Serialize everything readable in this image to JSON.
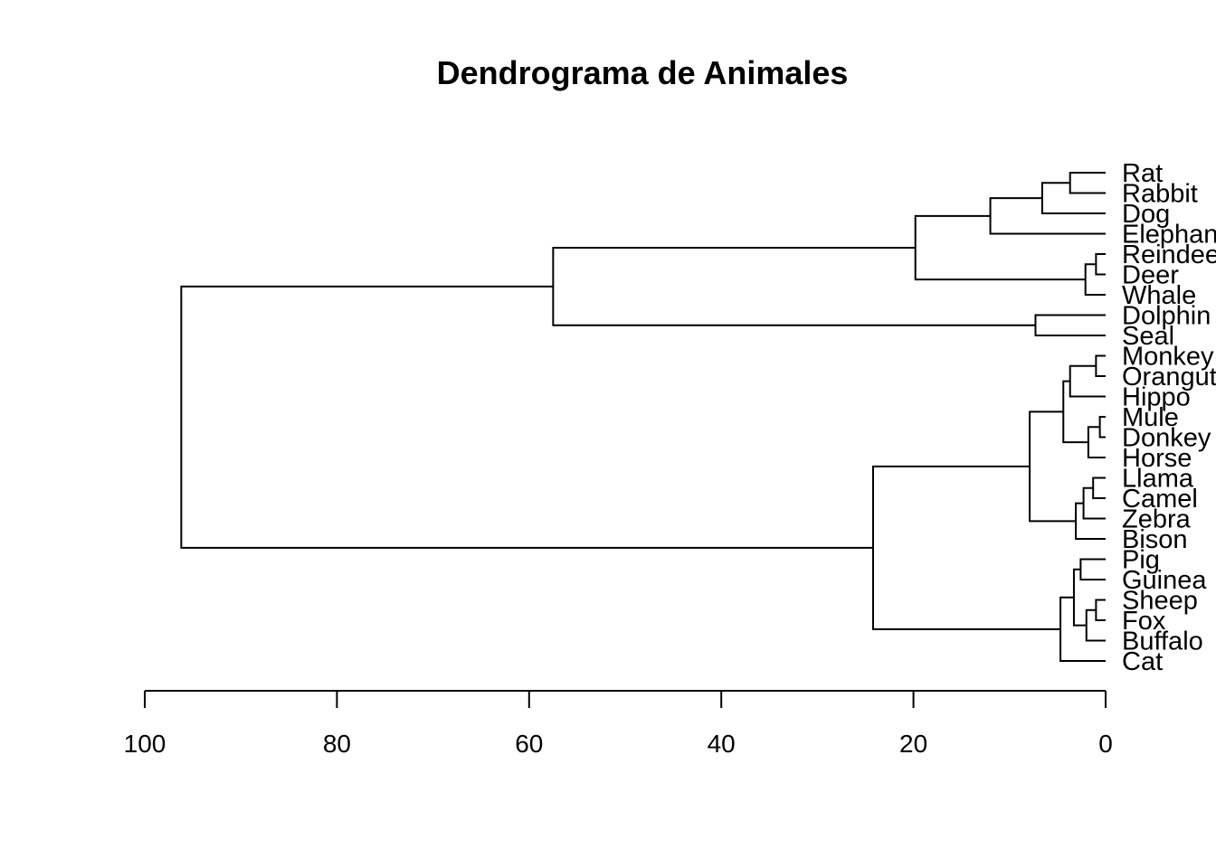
{
  "chart_data": {
    "type": "dendrogram",
    "title": "Dendrograma de Animales",
    "orientation": "horizontal",
    "xlim": [
      100,
      0
    ],
    "ticks": [
      100,
      80,
      60,
      40,
      20,
      0
    ],
    "leaves": [
      "Rat",
      "Rabbit",
      "Dog",
      "Elephant",
      "Reindeer",
      "Deer",
      "Whale",
      "Dolphin",
      "Seal",
      "Monkey",
      "Orangutan",
      "Hippo",
      "Mule",
      "Donkey",
      "Horse",
      "Llama",
      "Camel",
      "Zebra",
      "Bison",
      "Pig",
      "Guinea Pig",
      "Sheep",
      "Fox",
      "Buffalo",
      "Cat"
    ],
    "merges": [
      {
        "a": "Rat",
        "b": "Rabbit",
        "height": 3.7
      },
      {
        "a": "Reindeer",
        "b": "Deer",
        "height": 1.0
      },
      {
        "a": "Monkey",
        "b": "Orangutan",
        "height": 1.0
      },
      {
        "a": "Mule",
        "b": "Donkey",
        "height": 0.6
      },
      {
        "a": "Llama",
        "b": "Camel",
        "height": 1.3
      },
      {
        "a": "Sheep",
        "b": "Fox",
        "height": 1.0
      },
      {
        "a": "Pig",
        "b": "Guinea Pig",
        "height": 2.6
      },
      {
        "a": "Rat-Rabbit",
        "b": "Dog",
        "height": 6.6
      },
      {
        "a": "Rat-Dog",
        "b": "Elephant",
        "height": 12.0
      },
      {
        "a": "Reindeer-Deer",
        "b": "Whale",
        "height": 2.1
      },
      {
        "a": "Rat-Elephant",
        "b": "Reindeer-Whale",
        "height": 19.8
      },
      {
        "a": "Dolphin",
        "b": "Seal",
        "height": 7.3
      },
      {
        "a": "Rat-Whale",
        "b": "Dolphin-Seal",
        "height": 57.5
      },
      {
        "a": "Monkey-Orangutan",
        "b": "Hippo",
        "height": 3.7
      },
      {
        "a": "Mule-Donkey",
        "b": "Horse",
        "height": 1.8
      },
      {
        "a": "Monkey-Hippo",
        "b": "Mule-Horse",
        "height": 4.4
      },
      {
        "a": "Llama-Camel",
        "b": "Zebra",
        "height": 2.3
      },
      {
        "a": "Llama-Zebra",
        "b": "Bison",
        "height": 3.1
      },
      {
        "a": "Monkey-Horse",
        "b": "Llama-Bison",
        "height": 7.9
      },
      {
        "a": "Sheep-Fox",
        "b": "Buffalo",
        "height": 2.0
      },
      {
        "a": "Pig-Guinea Pig",
        "b": "Sheep-Buffalo",
        "height": 3.3
      },
      {
        "a": "Pig-Buffalo",
        "b": "Cat",
        "height": 4.7
      },
      {
        "a": "Monkey-Bison",
        "b": "Pig-Cat",
        "height": 24.2
      },
      {
        "a": "Rat-Seal",
        "b": "Monkey-Cat",
        "height": 96.2
      }
    ]
  }
}
